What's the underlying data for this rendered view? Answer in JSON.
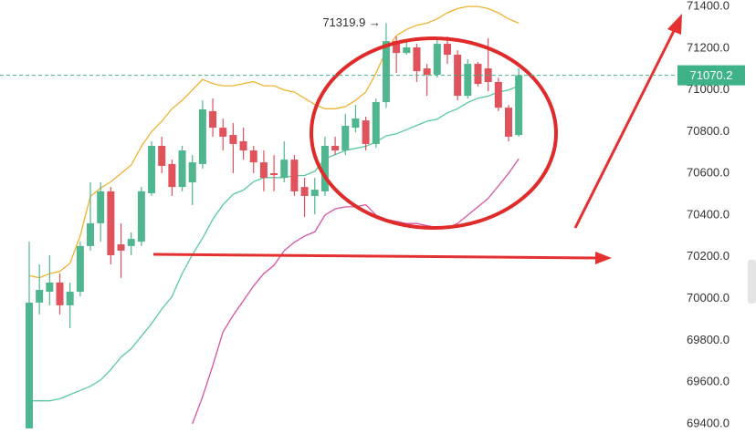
{
  "chart_data": {
    "type": "candlestick",
    "categories": [
      null,
      null,
      null,
      null,
      null,
      null,
      null,
      null,
      null,
      null,
      null,
      null,
      null,
      null,
      null,
      null,
      null,
      null,
      null,
      null,
      null,
      null,
      null,
      null,
      null,
      null,
      null,
      null,
      null,
      null,
      null,
      null,
      null,
      null,
      null,
      null,
      null,
      null,
      null,
      null,
      null,
      null,
      null,
      null,
      null,
      null,
      null,
      null,
      null
    ],
    "open": [
      69378,
      69981,
      70033,
      70077,
      69968,
      70033,
      70252,
      70361,
      70514,
      70260,
      70252,
      70273,
      70505,
      70732,
      70645,
      70535,
      70557,
      70645,
      70898,
      70819,
      70784,
      70754,
      70710,
      70653,
      70601,
      70579,
      70666,
      70535,
      70492,
      70514,
      70732,
      70710,
      70819,
      70854,
      70741,
      70942,
      71234,
      71177,
      71204,
      71103,
      71073,
      71221,
      71169,
      70972,
      71125,
      71103,
      71038,
      70915,
      70784
    ],
    "high": [
      70273,
      70164,
      70208,
      70121,
      70077,
      70273,
      70557,
      70557,
      70535,
      70361,
      70317,
      70535,
      70754,
      70776,
      70666,
      70732,
      70688,
      70950,
      70959,
      70863,
      70841,
      70819,
      70732,
      70710,
      70688,
      70754,
      70688,
      70579,
      70579,
      70776,
      70776,
      70885,
      70928,
      70872,
      70959,
      71319.9,
      71256,
      71234,
      71221,
      71125,
      71247,
      71256,
      71190,
      71147,
      71134,
      71247,
      71059,
      70928,
      71103
    ],
    "low": [
      69378,
      69924,
      69968,
      69924,
      69859,
      70011,
      70230,
      70273,
      70164,
      70099,
      70208,
      70252,
      70492,
      70601,
      70492,
      70514,
      70448,
      70623,
      70776,
      70710,
      70601,
      70666,
      70601,
      70514,
      70514,
      70557,
      70492,
      70391,
      70404,
      70492,
      70688,
      70688,
      70797,
      70710,
      70723,
      70915,
      71081,
      71169,
      71038,
      70972,
      71059,
      71125,
      70950,
      70959,
      71016,
      70994,
      70898,
      70754,
      70776
    ],
    "close": [
      69981,
      70042,
      70077,
      69968,
      70033,
      70252,
      70361,
      70514,
      70208,
      70230,
      70286,
      70514,
      70732,
      70636,
      70535,
      70710,
      70653,
      70907,
      70819,
      70776,
      70741,
      70710,
      70653,
      70579,
      70592,
      70666,
      70514,
      70492,
      70522,
      70732,
      70710,
      70828,
      70863,
      70741,
      70942,
      71234,
      71177,
      71204,
      71090,
      71073,
      71221,
      71169,
      70972,
      71125,
      71029,
      71038,
      70915,
      70776,
      71070.2
    ],
    "up_color": "#4fb68f",
    "down_color": "#e0525c",
    "lines": [
      {
        "color": "#f0b232",
        "values": [
          70110,
          70100,
          70120,
          70130,
          70170,
          70300,
          70490,
          70530,
          70560,
          70600,
          70640,
          70730,
          70800,
          70850,
          70910,
          70950,
          71000,
          71050,
          71030,
          71020,
          71020,
          71030,
          71040,
          71020,
          71020,
          71000,
          70990,
          70960,
          70930,
          70910,
          70910,
          70920,
          70950,
          70990,
          71080,
          71190,
          71260,
          71290,
          71310,
          71320,
          71340,
          71370,
          71390,
          71400,
          71400,
          71390,
          71370,
          71340,
          71320
        ]
      },
      {
        "color": "#5ac9a0",
        "values": [
          69510,
          69510,
          69510,
          69520,
          69540,
          69560,
          69580,
          69610,
          69660,
          69720,
          69760,
          69820,
          69880,
          69950,
          70010,
          70120,
          70210,
          70290,
          70380,
          70450,
          70500,
          70520,
          70560,
          70580,
          70580,
          70580,
          70590,
          70590,
          70610,
          70670,
          70690,
          70710,
          70720,
          70730,
          70750,
          70780,
          70790,
          70810,
          70830,
          70850,
          70860,
          70890,
          70910,
          70940,
          70960,
          70970,
          70990,
          71000,
          71020
        ]
      },
      {
        "color": "#d453a6",
        "values": [
          null,
          null,
          null,
          null,
          null,
          null,
          null,
          null,
          null,
          null,
          null,
          null,
          null,
          null,
          null,
          null,
          69400,
          69530,
          69680,
          69840,
          69920,
          69990,
          70060,
          70120,
          70160,
          70230,
          70270,
          70300,
          70320,
          70400,
          70430,
          70440,
          70440,
          70450,
          70400,
          70380,
          70370,
          70360,
          70360,
          70350,
          70340,
          70340,
          70360,
          70400,
          70440,
          70480,
          70540,
          70600,
          70670
        ]
      }
    ],
    "annotation": "71319.9 →",
    "ylim": [
      69356,
      71431
    ],
    "yticks": [
      {
        "value": 69400,
        "label": "69400.0"
      },
      {
        "value": 69600,
        "label": "69600.0"
      },
      {
        "value": 69800,
        "label": "69800.0"
      },
      {
        "value": 70000,
        "label": "70000.0"
      },
      {
        "value": 70200,
        "label": "70200.0"
      },
      {
        "value": 70400,
        "label": "70400.0"
      },
      {
        "value": 70600,
        "label": "70600.0"
      },
      {
        "value": 70800,
        "label": "70800.0"
      },
      {
        "value": 71000,
        "label": "71000.0"
      },
      {
        "value": 71200,
        "label": "71200.0"
      },
      {
        "value": 71400,
        "label": "71400.0"
      }
    ],
    "last_price_color": "#3fb388"
  }
}
